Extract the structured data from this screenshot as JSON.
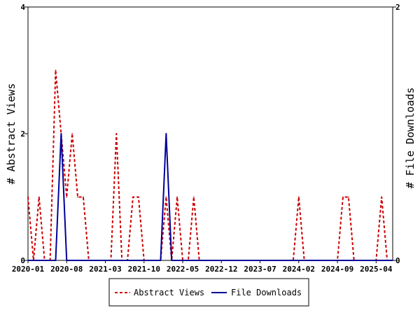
{
  "chart_data": {
    "type": "line",
    "x": [
      "2020-01",
      "2020-02",
      "2020-03",
      "2020-04",
      "2020-05",
      "2020-06",
      "2020-07",
      "2020-08",
      "2020-09",
      "2020-10",
      "2020-11",
      "2020-12",
      "2021-01",
      "2021-02",
      "2021-03",
      "2021-04",
      "2021-05",
      "2021-06",
      "2021-07",
      "2021-08",
      "2021-09",
      "2021-10",
      "2021-11",
      "2021-12",
      "2022-01",
      "2022-02",
      "2022-03",
      "2022-04",
      "2022-05",
      "2022-06",
      "2022-07",
      "2022-08",
      "2022-09",
      "2022-10",
      "2022-11",
      "2022-12",
      "2023-01",
      "2023-02",
      "2023-03",
      "2023-04",
      "2023-05",
      "2023-06",
      "2023-07",
      "2023-08",
      "2023-09",
      "2023-10",
      "2023-11",
      "2023-12",
      "2024-01",
      "2024-02",
      "2024-03",
      "2024-04",
      "2024-05",
      "2024-06",
      "2024-07",
      "2024-08",
      "2024-09",
      "2024-10",
      "2024-11",
      "2024-12",
      "2025-01",
      "2025-02",
      "2025-03",
      "2025-04",
      "2025-05",
      "2025-06",
      "2025-07"
    ],
    "series": [
      {
        "name": "Abstract Views",
        "axis": "left",
        "color": "#cc0000",
        "style": "dashed",
        "values": [
          1,
          0,
          1,
          0,
          0,
          3,
          2,
          1,
          2,
          1,
          1,
          0,
          0,
          0,
          0,
          0,
          2,
          0,
          0,
          1,
          1,
          0,
          0,
          0,
          0,
          1,
          0,
          1,
          0,
          0,
          1,
          0,
          0,
          0,
          0,
          0,
          0,
          0,
          0,
          0,
          0,
          0,
          0,
          0,
          0,
          0,
          0,
          0,
          0,
          1,
          0,
          0,
          0,
          0,
          0,
          0,
          0,
          1,
          1,
          0,
          0,
          0,
          0,
          0,
          1,
          0,
          0
        ]
      },
      {
        "name": "File Downloads",
        "axis": "right",
        "color": "#000099",
        "style": "solid",
        "values": [
          0,
          0,
          0,
          0,
          0,
          0,
          1,
          0,
          0,
          0,
          0,
          0,
          0,
          0,
          0,
          0,
          0,
          0,
          0,
          0,
          0,
          0,
          0,
          0,
          0,
          1,
          0,
          0,
          0,
          0,
          0,
          0,
          0,
          0,
          0,
          0,
          0,
          0,
          0,
          0,
          0,
          0,
          0,
          0,
          0,
          0,
          0,
          0,
          0,
          0,
          0,
          0,
          0,
          0,
          0,
          0,
          0,
          0,
          0,
          0,
          0,
          0,
          0,
          0,
          0,
          0,
          0
        ]
      }
    ],
    "xticks": [
      "2020-01",
      "2020-08",
      "2021-03",
      "2021-10",
      "2022-05",
      "2022-12",
      "2023-07",
      "2024-02",
      "2024-09",
      "2025-04"
    ],
    "ylabel": "# Abstract Views",
    "y2label": "# File Downloads",
    "ylim": [
      0,
      4
    ],
    "y2lim": [
      0,
      2
    ],
    "yticks": [
      0,
      2,
      4
    ],
    "y2ticks": [
      0,
      2
    ],
    "grid": false,
    "legend_position": "bottom"
  }
}
